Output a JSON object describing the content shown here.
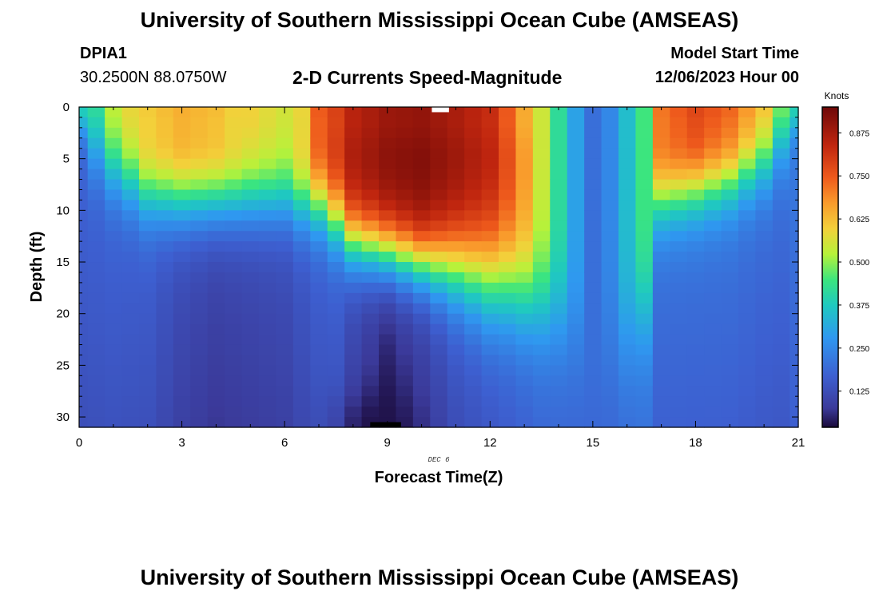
{
  "page": {
    "title_top": "University of Southern Mississippi Ocean Cube (AMSEAS)",
    "title_bottom": "University of Southern Mississippi Ocean Cube (AMSEAS)",
    "station": "DPIA1",
    "coordinates": "30.2500N  88.0750W",
    "subtitle": "2-D Currents Speed-Magnitude",
    "model_start_label": "Model Start Time",
    "model_start_value": "12/06/2023 Hour 00"
  },
  "chart_data": {
    "type": "heatmap",
    "title": "2-D Currents Speed-Magnitude",
    "xlabel": "Forecast Time(Z)",
    "ylabel": "Depth (ft)",
    "x_date_label": "DEC 6",
    "xlim": [
      0,
      21
    ],
    "ylim": [
      0,
      31
    ],
    "y_inverted": true,
    "x_ticks": [
      0,
      3,
      6,
      9,
      12,
      15,
      18,
      21
    ],
    "y_ticks": [
      0,
      5,
      10,
      15,
      20,
      25,
      30
    ],
    "colorbar": {
      "unit": "Knots",
      "min": 0.02,
      "max": 0.95,
      "ticks": [
        "0.125",
        "0.250",
        "0.375",
        "0.500",
        "0.625",
        "0.750",
        "0.875"
      ]
    },
    "x_hours": [
      0,
      0.5,
      1,
      1.5,
      2,
      2.5,
      3,
      3.5,
      4,
      4.5,
      5,
      5.5,
      6,
      6.5,
      7,
      7.5,
      8,
      8.5,
      9,
      9.5,
      10,
      10.5,
      11,
      11.5,
      12,
      12.5,
      13,
      13.5,
      14,
      14.5,
      15,
      15.5,
      16,
      16.5,
      17,
      17.5,
      18,
      18.5,
      19,
      19.5,
      20,
      20.5,
      21
    ],
    "profiles": [
      {
        "h": 0,
        "S": 0.42,
        "H": 2,
        "W": 1,
        "D": 0.18
      },
      {
        "h": 0.5,
        "S": 0.45,
        "H": 4,
        "W": 2,
        "D": 0.18
      },
      {
        "h": 1,
        "S": 0.55,
        "H": 6,
        "W": 2,
        "D": 0.18
      },
      {
        "h": 2,
        "S": 0.64,
        "H": 8.5,
        "W": 2,
        "D": 0.17
      },
      {
        "h": 3,
        "S": 0.68,
        "H": 9,
        "W": 2,
        "D": 0.13
      },
      {
        "h": 4,
        "S": 0.66,
        "H": 9,
        "W": 2,
        "D": 0.11
      },
      {
        "h": 5,
        "S": 0.6,
        "H": 9,
        "W": 2,
        "D": 0.12
      },
      {
        "h": 6,
        "S": 0.56,
        "H": 9,
        "W": 2,
        "D": 0.13
      },
      {
        "h": 6.5,
        "S": 0.62,
        "H": 9.5,
        "W": 2,
        "D": 0.15
      },
      {
        "h": 7,
        "S": 0.78,
        "H": 9.5,
        "W": 2,
        "D": 0.17
      },
      {
        "h": 7.5,
        "S": 0.82,
        "H": 11,
        "W": 2,
        "D": 0.17
      },
      {
        "h": 8,
        "S": 0.88,
        "H": 13,
        "W": 2,
        "D": 0.12
      },
      {
        "h": 9,
        "S": 0.92,
        "H": 14,
        "W": 2,
        "D": 0.06
      },
      {
        "h": 10,
        "S": 0.93,
        "H": 15,
        "W": 2,
        "D": 0.1
      },
      {
        "h": 11,
        "S": 0.9,
        "H": 15.5,
        "W": 2.5,
        "D": 0.15
      },
      {
        "h": 12,
        "S": 0.86,
        "H": 16.5,
        "W": 3,
        "D": 0.17
      },
      {
        "h": 12.5,
        "S": 0.78,
        "H": 17,
        "W": 3,
        "D": 0.18
      },
      {
        "h": 13,
        "S": 0.68,
        "H": 18,
        "W": 3,
        "D": 0.19
      },
      {
        "h": 13.5,
        "S": 0.55,
        "H": 19,
        "W": 3,
        "D": 0.2
      },
      {
        "h": 14,
        "S": 0.42,
        "H": 20,
        "W": 3,
        "D": 0.2
      },
      {
        "h": 14.5,
        "S": 0.3,
        "H": 21,
        "W": 3,
        "D": 0.2
      },
      {
        "h": 15,
        "S": 0.2,
        "H": 22,
        "W": 3,
        "D": 0.2
      },
      {
        "h": 15.5,
        "S": 0.25,
        "H": 22,
        "W": 3,
        "D": 0.2
      },
      {
        "h": 16,
        "S": 0.35,
        "H": 22,
        "W": 3,
        "D": 0.21
      },
      {
        "h": 16.5,
        "S": 0.45,
        "H": 20,
        "W": 3,
        "D": 0.22
      },
      {
        "h": 17,
        "S": 0.75,
        "H": 9,
        "W": 2,
        "D": 0.21
      },
      {
        "h": 18,
        "S": 0.82,
        "H": 8,
        "W": 2,
        "D": 0.21
      },
      {
        "h": 19,
        "S": 0.78,
        "H": 7,
        "W": 2,
        "D": 0.21
      },
      {
        "h": 20,
        "S": 0.68,
        "H": 5,
        "W": 2,
        "D": 0.2
      },
      {
        "h": 20.5,
        "S": 0.55,
        "H": 3,
        "W": 2,
        "D": 0.2
      },
      {
        "h": 21,
        "S": 0.42,
        "H": 2,
        "W": 1,
        "D": 0.22
      }
    ],
    "low_speed_pocket": {
      "center_hour": 8.7,
      "center_depth": 31,
      "min_speed": 0.03
    },
    "missing_cells": [
      {
        "hour_start": 10.3,
        "hour_end": 10.8,
        "depth_start": 0,
        "depth_end": 0.5,
        "color": "#ffffff"
      },
      {
        "hour_start": 8.5,
        "hour_end": 9.4,
        "depth_start": 30.5,
        "depth_end": 31,
        "color": "#000000"
      }
    ]
  }
}
